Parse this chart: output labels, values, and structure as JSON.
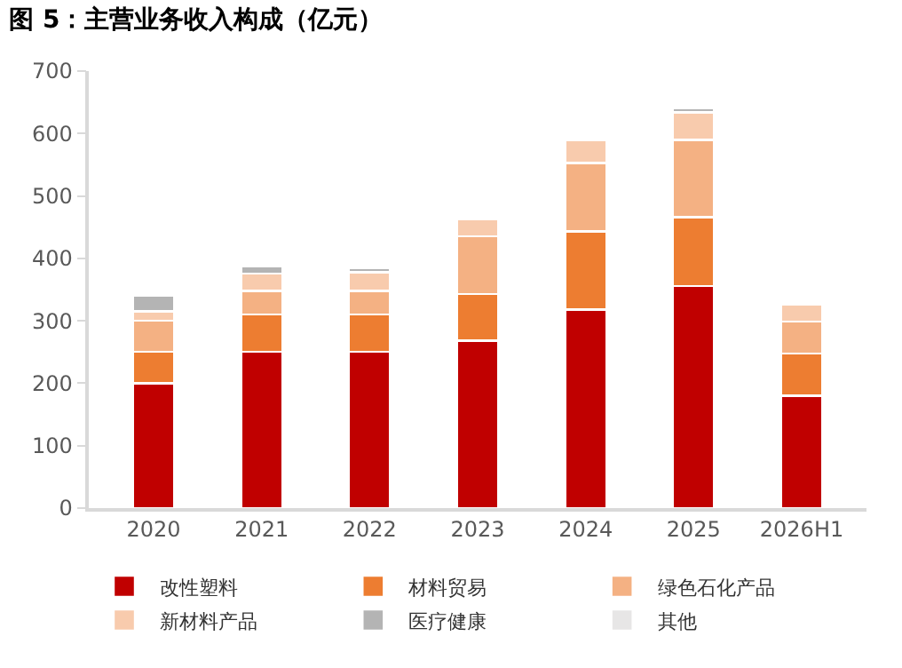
{
  "chart_data": {
    "type": "bar",
    "title": "图 5：主营业务收入构成（亿元）",
    "stacked": true,
    "categories": [
      "2020",
      "2021",
      "2022",
      "2023",
      "2024",
      "2025",
      "2026H1"
    ],
    "series": [
      {
        "name": "改性塑料",
        "color": "#c00000",
        "values": [
          200,
          250,
          250,
          268,
          318,
          356,
          180
        ]
      },
      {
        "name": "材料贸易",
        "color": "#ed7d31",
        "values": [
          50,
          60,
          60,
          75,
          125,
          110,
          68
        ]
      },
      {
        "name": "绿色石化产品",
        "color": "#f4b183",
        "values": [
          50,
          38,
          38,
          92,
          110,
          124,
          51
        ]
      },
      {
        "name": "新材料产品",
        "color": "#f8cbad",
        "values": [
          15,
          28,
          30,
          28,
          37,
          44,
          27
        ]
      },
      {
        "name": "医疗健康",
        "color": "#b4b4b4",
        "values": [
          25,
          12,
          7,
          null,
          null,
          6,
          null
        ]
      },
      {
        "name": "其他",
        "color": "#e7e6e6",
        "values": [
          null,
          null,
          null,
          null,
          null,
          4,
          null
        ]
      }
    ],
    "ylim": [
      0,
      700
    ],
    "yticks": [
      0,
      100,
      200,
      300,
      400,
      500,
      600,
      700
    ],
    "grid": false,
    "legend": "bottom"
  }
}
